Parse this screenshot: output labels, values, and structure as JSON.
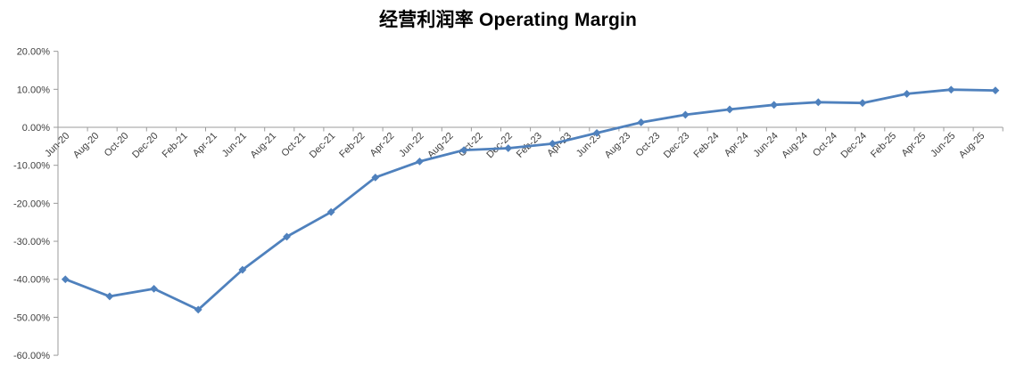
{
  "title": "经营利润率 Operating Margin",
  "colors": {
    "series_line": "#4F81BD",
    "axis_line": "#9B9B9B",
    "tick_label_text": "#3F3F3F",
    "title_text": "#000000",
    "background": "#FFFFFF"
  },
  "chart_data": {
    "type": "line",
    "title": "经营利润率 Operating Margin",
    "legend": "none",
    "gridlines": false,
    "x_axis": {
      "kind": "date",
      "tick_labels": [
        "Jun-20",
        "Aug-20",
        "Oct-20",
        "Dec-20",
        "Feb-21",
        "Apr-21",
        "Jun-21",
        "Aug-21",
        "Oct-21",
        "Dec-21",
        "Feb-22",
        "Apr-22",
        "Jun-22",
        "Aug-22",
        "Oct-22",
        "Dec-22",
        "Feb-23",
        "Apr-23",
        "Jun-23",
        "Aug-23",
        "Oct-23",
        "Dec-23",
        "Feb-24",
        "Apr-24",
        "Jun-24",
        "Aug-24",
        "Oct-24",
        "Dec-24",
        "Feb-25",
        "Apr-25",
        "Jun-25",
        "Aug-25"
      ],
      "label_interval_months": 2,
      "label_rotation_deg": -45
    },
    "y_axis": {
      "tick_labels": [
        "20.00%",
        "10.00%",
        "0.00%",
        "-10.00%",
        "-20.00%",
        "-30.00%",
        "-40.00%",
        "-50.00%",
        "-60.00%"
      ],
      "tick_values": [
        20,
        10,
        0,
        -10,
        -20,
        -30,
        -40,
        -50,
        -60
      ],
      "min": -60,
      "max": 20,
      "unit": "%"
    },
    "series": [
      {
        "name": "Operating Margin",
        "color": "#4F81BD",
        "marker": "diamond",
        "interval_months": 3,
        "x": [
          "Jun-20",
          "Sep-20",
          "Dec-20",
          "Mar-21",
          "Jun-21",
          "Sep-21",
          "Dec-21",
          "Mar-22",
          "Jun-22",
          "Sep-22",
          "Dec-22",
          "Mar-23",
          "Jun-23",
          "Sep-23",
          "Dec-23",
          "Mar-24",
          "Jun-24",
          "Sep-24",
          "Dec-24",
          "Mar-25",
          "Jun-25",
          "Sep-25"
        ],
        "values": [
          -40.0,
          -44.5,
          -42.5,
          -48.0,
          -37.5,
          -28.8,
          -22.3,
          -13.2,
          -9.0,
          -6.0,
          -5.5,
          -4.3,
          -1.5,
          1.3,
          3.3,
          4.7,
          5.9,
          6.6,
          6.4,
          8.8,
          9.9,
          9.7
        ]
      }
    ]
  }
}
